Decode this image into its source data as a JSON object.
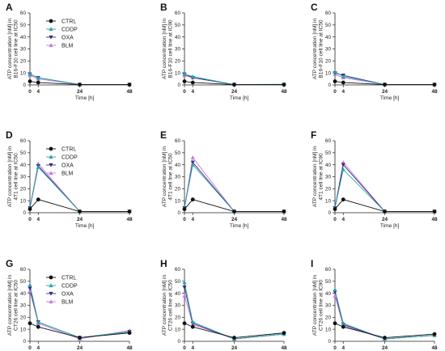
{
  "figure": {
    "series_styles": [
      {
        "name": "CTRL",
        "color": "#111111",
        "marker": "circle"
      },
      {
        "name": "CDDP",
        "color": "#22a7a7",
        "marker": "triangle"
      },
      {
        "name": "OXA",
        "color": "#3b2a7e",
        "marker": "triangle-down"
      },
      {
        "name": "BLM",
        "color": "#c77be3",
        "marker": "triangle"
      }
    ]
  },
  "chart_data": [
    {
      "panel": "A",
      "type": "line",
      "xlabel": "Time [h]",
      "ylabel_lines": [
        "ATP concentration [nM] in",
        "B16-F10 cell line at IC50"
      ],
      "x": [
        0,
        4,
        24,
        48
      ],
      "xticks": [
        "0",
        "4",
        "24",
        "48"
      ],
      "ylim": [
        0,
        60
      ],
      "yticks": [
        "0",
        "10",
        "20",
        "30",
        "40",
        "50",
        "60"
      ],
      "legend": "top-left",
      "series": [
        {
          "name": "CTRL",
          "values": [
            3,
            2,
            0.3,
            0.3
          ]
        },
        {
          "name": "CDDP",
          "values": [
            9,
            6,
            0.3,
            0.3
          ]
        },
        {
          "name": "OXA",
          "values": [
            9,
            6,
            0.3,
            0.3
          ]
        },
        {
          "name": "BLM",
          "values": [
            8,
            5,
            0.3,
            0.3
          ]
        }
      ]
    },
    {
      "panel": "B",
      "type": "line",
      "xlabel": "Time [h]",
      "ylabel_lines": [
        "ATP concentration [nM] in",
        "B16-F10 cell line at IC90"
      ],
      "x": [
        0,
        4,
        24,
        48
      ],
      "xticks": [
        "0",
        "4",
        "24",
        "48"
      ],
      "ylim": [
        0,
        60
      ],
      "yticks": [
        "0",
        "10",
        "20",
        "30",
        "40",
        "50",
        "60"
      ],
      "legend": "none",
      "series": [
        {
          "name": "CTRL",
          "values": [
            3,
            2,
            0.3,
            0.3
          ]
        },
        {
          "name": "CDDP",
          "values": [
            9,
            7,
            0.3,
            0.5
          ]
        },
        {
          "name": "OXA",
          "values": [
            9,
            6,
            0.3,
            0.3
          ]
        },
        {
          "name": "BLM",
          "values": [
            8,
            6,
            0.3,
            0.3
          ]
        }
      ]
    },
    {
      "panel": "C",
      "type": "line",
      "xlabel": "Time [h]",
      "ylabel_lines": [
        "ATP concentration [nM] in",
        "B16-F10 cell line at IC50"
      ],
      "x": [
        0,
        4,
        24,
        48
      ],
      "xticks": [
        "0",
        "4",
        "24",
        "48"
      ],
      "ylim": [
        0,
        60
      ],
      "yticks": [
        "0",
        "10",
        "20",
        "30",
        "40",
        "50",
        "60"
      ],
      "legend": "none",
      "series": [
        {
          "name": "CTRL",
          "values": [
            3,
            2,
            0.3,
            0.3
          ]
        },
        {
          "name": "CDDP",
          "values": [
            11,
            7,
            0.3,
            0.3
          ]
        },
        {
          "name": "OXA",
          "values": [
            10,
            8,
            0.3,
            0.3
          ]
        },
        {
          "name": "BLM",
          "values": [
            9,
            6,
            0.3,
            0.3
          ]
        }
      ]
    },
    {
      "panel": "D",
      "type": "line",
      "xlabel": "Time [h]",
      "ylabel_lines": [
        "ATP concentration [nM] in",
        "4T1 cell line at IC50"
      ],
      "x": [
        0,
        4,
        24,
        48
      ],
      "xticks": [
        "0",
        "4",
        "24",
        "48"
      ],
      "ylim": [
        0,
        60
      ],
      "yticks": [
        "0",
        "10",
        "20",
        "30",
        "40",
        "50",
        "60"
      ],
      "legend": "top-left",
      "series": [
        {
          "name": "CTRL",
          "values": [
            3,
            11,
            1,
            1
          ]
        },
        {
          "name": "CDDP",
          "values": [
            4,
            38,
            1,
            1
          ]
        },
        {
          "name": "OXA",
          "values": [
            4,
            39,
            1,
            1
          ]
        },
        {
          "name": "BLM",
          "values": [
            4,
            41,
            1,
            1
          ]
        }
      ]
    },
    {
      "panel": "E",
      "type": "line",
      "xlabel": "Time [h]",
      "ylabel_lines": [
        "ATP concentration [nM] in",
        "4T1 cell line at IC50"
      ],
      "x": [
        0,
        4,
        24,
        48
      ],
      "xticks": [
        "0",
        "4",
        "24",
        "48"
      ],
      "ylim": [
        0,
        60
      ],
      "yticks": [
        "0",
        "10",
        "20",
        "30",
        "40",
        "50",
        "60"
      ],
      "legend": "none",
      "series": [
        {
          "name": "CTRL",
          "values": [
            3,
            11,
            1,
            1
          ]
        },
        {
          "name": "CDDP",
          "values": [
            4,
            40,
            1,
            1
          ]
        },
        {
          "name": "OXA",
          "values": [
            4,
            42,
            1,
            1
          ]
        },
        {
          "name": "BLM",
          "values": [
            4,
            46,
            1,
            1
          ]
        }
      ]
    },
    {
      "panel": "F",
      "type": "line",
      "xlabel": "Time [h]",
      "ylabel_lines": [
        "ATP concentration [nM] in",
        "4T1 cell line at IC90"
      ],
      "x": [
        0,
        4,
        24,
        48
      ],
      "xticks": [
        "0",
        "4",
        "24",
        "48"
      ],
      "ylim": [
        0,
        60
      ],
      "yticks": [
        "0",
        "10",
        "20",
        "30",
        "40",
        "50",
        "60"
      ],
      "legend": "none",
      "series": [
        {
          "name": "CTRL",
          "values": [
            3,
            11,
            1,
            1
          ]
        },
        {
          "name": "CDDP",
          "values": [
            4,
            36,
            1,
            1
          ]
        },
        {
          "name": "OXA",
          "values": [
            4,
            40,
            1,
            1
          ]
        },
        {
          "name": "BLM",
          "values": [
            4,
            42,
            1,
            1
          ]
        }
      ]
    },
    {
      "panel": "G",
      "type": "line",
      "xlabel": "Time [h]",
      "ylabel_lines": [
        "ATP concentration [nM] in",
        "CT26 cell line at IC50"
      ],
      "x": [
        0,
        4,
        24,
        48
      ],
      "xticks": [
        "0",
        "4",
        "24",
        "48"
      ],
      "ylim": [
        0,
        60
      ],
      "yticks": [
        "0",
        "10",
        "20",
        "30",
        "40",
        "50",
        "60"
      ],
      "legend": "top-left",
      "series": [
        {
          "name": "CTRL",
          "values": [
            15,
            12,
            3,
            7
          ]
        },
        {
          "name": "CDDP",
          "values": [
            47,
            16,
            3,
            8
          ]
        },
        {
          "name": "OXA",
          "values": [
            44,
            16,
            3,
            8
          ]
        },
        {
          "name": "BLM",
          "values": [
            42,
            15,
            2,
            9
          ]
        }
      ]
    },
    {
      "panel": "H",
      "type": "line",
      "xlabel": "Time [h]",
      "ylabel_lines": [
        "ATP concentration [nM] in",
        "CT26 cell line at IC50"
      ],
      "x": [
        0,
        4,
        24,
        48
      ],
      "xticks": [
        "0",
        "4",
        "24",
        "48"
      ],
      "ylim": [
        0,
        60
      ],
      "yticks": [
        "0",
        "10",
        "20",
        "30",
        "40",
        "50",
        "60"
      ],
      "legend": "none",
      "series": [
        {
          "name": "CTRL",
          "values": [
            15,
            12,
            3,
            7
          ]
        },
        {
          "name": "CDDP",
          "values": [
            49,
            16,
            2,
            6
          ]
        },
        {
          "name": "OXA",
          "values": [
            45,
            15,
            2,
            6
          ]
        },
        {
          "name": "BLM",
          "values": [
            38,
            14,
            2,
            6
          ]
        }
      ]
    },
    {
      "panel": "I",
      "type": "line",
      "xlabel": "Time [h]",
      "ylabel_lines": [
        "ATP concentration [nM] in",
        "CT26 cell line at IC90"
      ],
      "x": [
        0,
        4,
        24,
        48
      ],
      "xticks": [
        "0",
        "4",
        "24",
        "48"
      ],
      "ylim": [
        0,
        60
      ],
      "yticks": [
        "0",
        "10",
        "20",
        "30",
        "40",
        "50",
        "60"
      ],
      "legend": "none",
      "series": [
        {
          "name": "CTRL",
          "values": [
            15,
            12,
            3,
            6
          ]
        },
        {
          "name": "CDDP",
          "values": [
            43,
            15,
            2,
            5
          ]
        },
        {
          "name": "OXA",
          "values": [
            41,
            14,
            2,
            5
          ]
        },
        {
          "name": "BLM",
          "values": [
            38,
            13,
            2,
            5
          ]
        }
      ]
    }
  ]
}
